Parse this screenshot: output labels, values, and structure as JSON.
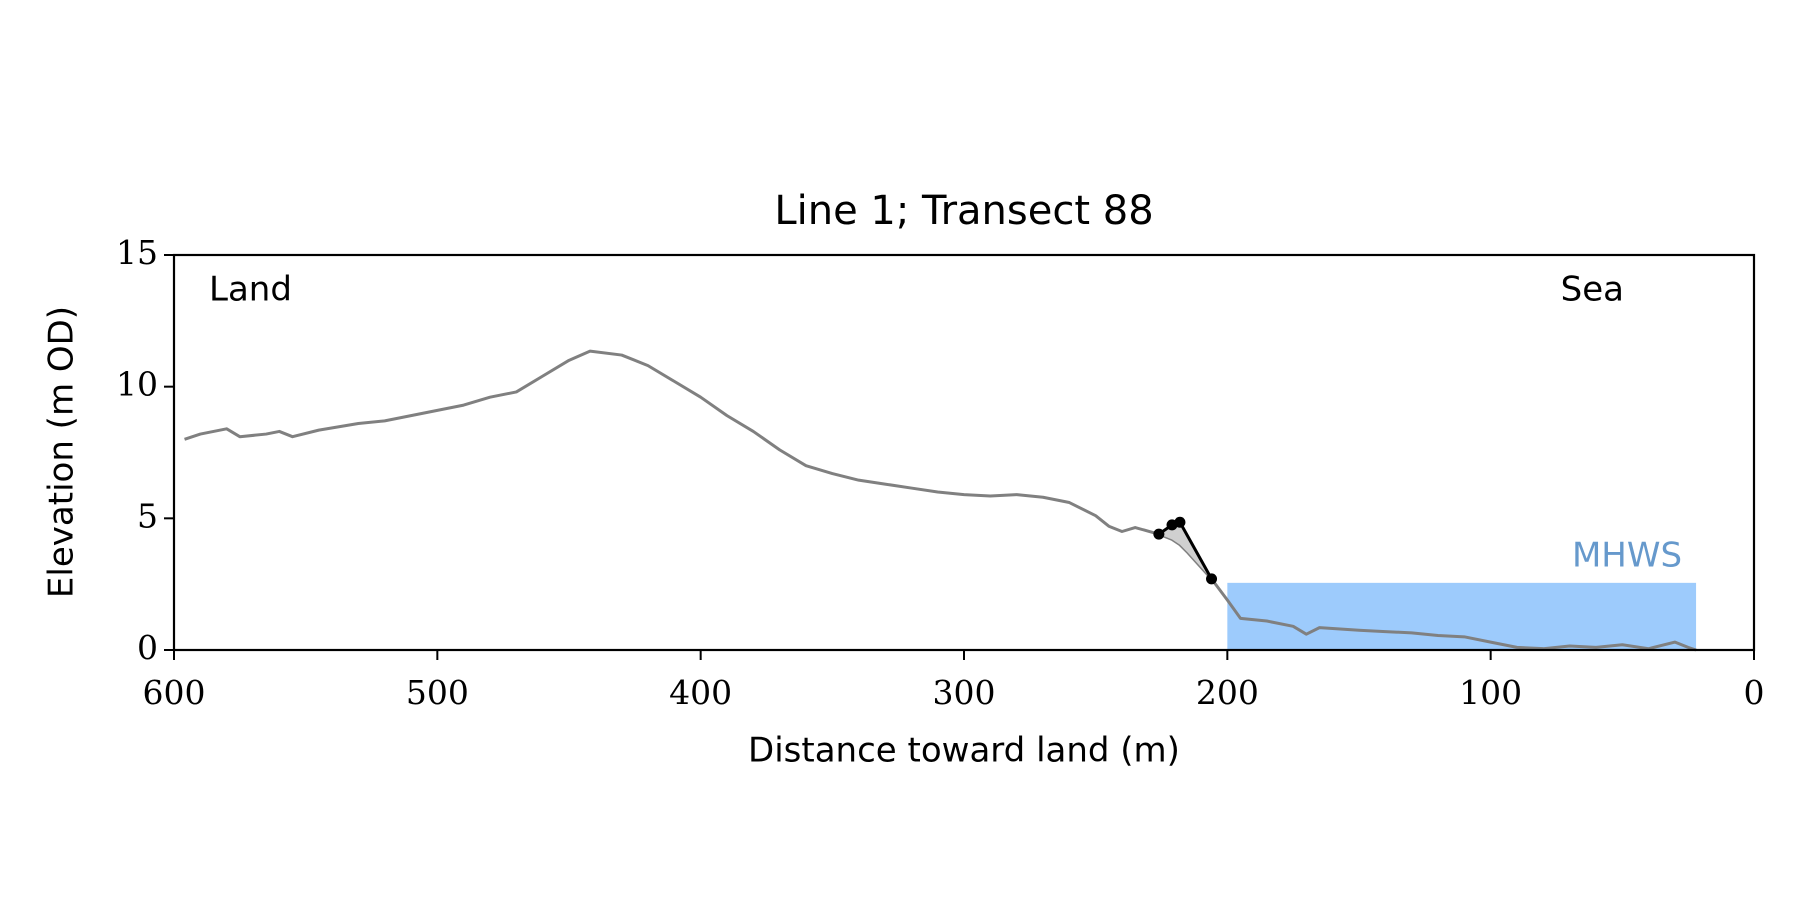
{
  "chart_data": {
    "type": "line",
    "title": "Line 1; Transect 88",
    "xlabel": "Distance toward land (m)",
    "ylabel": "Elevation (m OD)",
    "annotations": {
      "left": "Land",
      "right": "Sea"
    },
    "xlim": [
      600,
      0
    ],
    "xticks": [
      600,
      500,
      400,
      300,
      200,
      100,
      0
    ],
    "ylim": [
      0,
      15
    ],
    "yticks": [
      0,
      5,
      10,
      15
    ],
    "series": [
      {
        "color": "#808080",
        "x": [
          596,
          590,
          580,
          575,
          565,
          560,
          555,
          545,
          530,
          520,
          510,
          500,
          490,
          480,
          470,
          460,
          450,
          442,
          430,
          420,
          410,
          400,
          390,
          380,
          370,
          360,
          350,
          340,
          330,
          320,
          310,
          300,
          290,
          280,
          270,
          260,
          250,
          245,
          240,
          235,
          226,
          221,
          218,
          215,
          206,
          200,
          195,
          185,
          175,
          170,
          165,
          150,
          140,
          130,
          120,
          110,
          100,
          90,
          80,
          70,
          60,
          50,
          40,
          30,
          25,
          22
        ],
        "values": [
          8.0,
          8.2,
          8.4,
          8.1,
          8.2,
          8.3,
          8.1,
          8.35,
          8.6,
          8.7,
          8.9,
          9.1,
          9.3,
          9.6,
          9.8,
          10.4,
          11.0,
          11.35,
          11.2,
          10.8,
          10.2,
          9.6,
          8.9,
          8.3,
          7.6,
          7.0,
          6.7,
          6.45,
          6.3,
          6.15,
          6.0,
          5.9,
          5.85,
          5.9,
          5.8,
          5.6,
          5.1,
          4.7,
          4.5,
          4.65,
          4.4,
          4.2,
          4.0,
          3.7,
          2.7,
          1.9,
          1.2,
          1.1,
          0.9,
          0.6,
          0.85,
          0.75,
          0.7,
          0.65,
          0.55,
          0.5,
          0.3,
          0.1,
          0.05,
          0.15,
          0.1,
          0.2,
          0.05,
          0.3,
          0.1,
          0.0
        ]
      },
      {
        "color": "#000000",
        "markers": true,
        "shade": "#d0d0d0",
        "x": [
          226,
          221,
          218,
          206
        ],
        "values": [
          4.4,
          4.75,
          4.85,
          2.7
        ]
      }
    ],
    "mhws": {
      "label": "MHWS",
      "level": 2.55,
      "x_start": 200,
      "x_end": 22,
      "color": "#9dcbfc",
      "label_color": "#6699cc"
    }
  }
}
